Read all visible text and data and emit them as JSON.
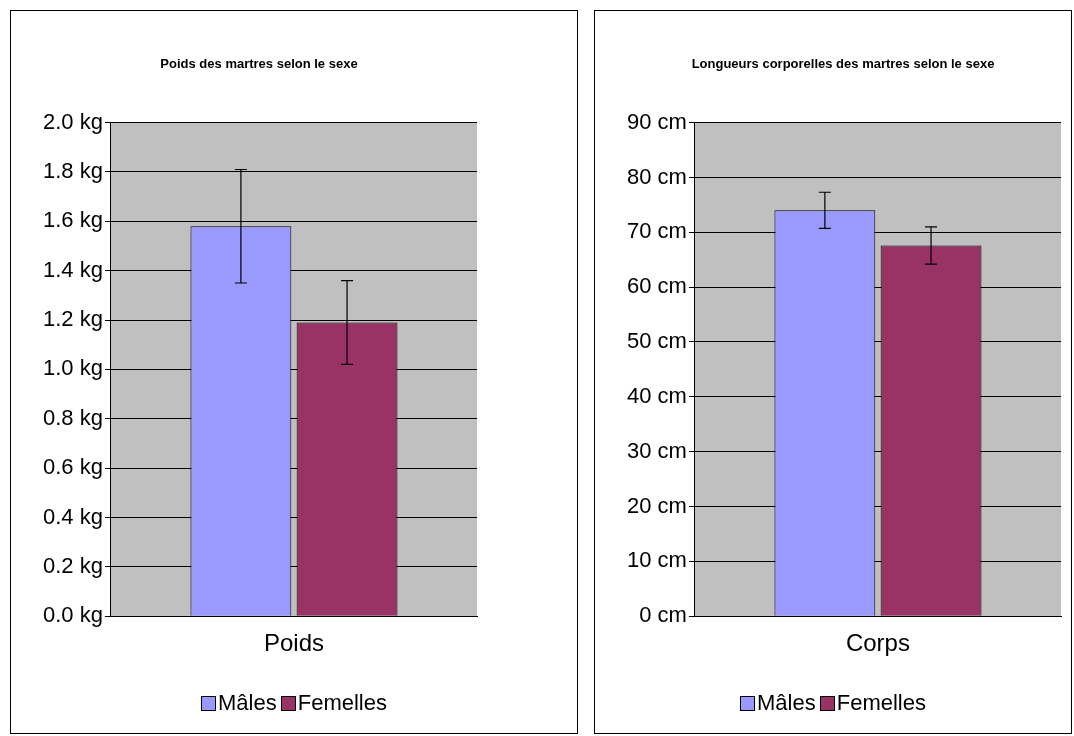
{
  "chart_data": [
    {
      "type": "bar",
      "title": "Poids des martres selon le sexe",
      "categories": [
        "Poids"
      ],
      "series": [
        {
          "name": "Mâles",
          "color": "#9999ff",
          "values": [
            1.58
          ],
          "errors": [
            0.23
          ]
        },
        {
          "name": "Femelles",
          "color": "#993366",
          "values": [
            1.19
          ],
          "errors": [
            0.17
          ]
        }
      ],
      "ylim": [
        0,
        2
      ],
      "yticks": [
        {
          "value": 0,
          "label": "0.0 kg"
        },
        {
          "value": 0.2,
          "label": "0.2 kg"
        },
        {
          "value": 0.4,
          "label": "0.4 kg"
        },
        {
          "value": 0.6,
          "label": "0.6 kg"
        },
        {
          "value": 0.8,
          "label": "0.8 kg"
        },
        {
          "value": 1,
          "label": "1.0 kg"
        },
        {
          "value": 1.2,
          "label": "1.2 kg"
        },
        {
          "value": 1.4,
          "label": "1.4 kg"
        },
        {
          "value": 1.6,
          "label": "1.6 kg"
        },
        {
          "value": 1.8,
          "label": "1.8 kg"
        },
        {
          "value": 2,
          "label": "2.0 kg"
        }
      ],
      "grid": "y",
      "legend": "bottom"
    },
    {
      "type": "bar",
      "title": "Longueurs corporelles des martres selon le sexe",
      "categories": [
        "Corps"
      ],
      "series": [
        {
          "name": "Mâles",
          "color": "#9999ff",
          "values": [
            74
          ],
          "errors": [
            3.3
          ]
        },
        {
          "name": "Femelles",
          "color": "#993366",
          "values": [
            67.6
          ],
          "errors": [
            3.4
          ]
        }
      ],
      "ylim": [
        0,
        90
      ],
      "yticks": [
        {
          "value": 0,
          "label": "0 cm"
        },
        {
          "value": 10,
          "label": "10 cm"
        },
        {
          "value": 20,
          "label": "20 cm"
        },
        {
          "value": 30,
          "label": "30 cm"
        },
        {
          "value": 40,
          "label": "40 cm"
        },
        {
          "value": 50,
          "label": "50 cm"
        },
        {
          "value": 60,
          "label": "60 cm"
        },
        {
          "value": 70,
          "label": "70 cm"
        },
        {
          "value": 80,
          "label": "80 cm"
        },
        {
          "value": 90,
          "label": "90 cm"
        }
      ],
      "grid": "y",
      "legend": "bottom"
    }
  ]
}
